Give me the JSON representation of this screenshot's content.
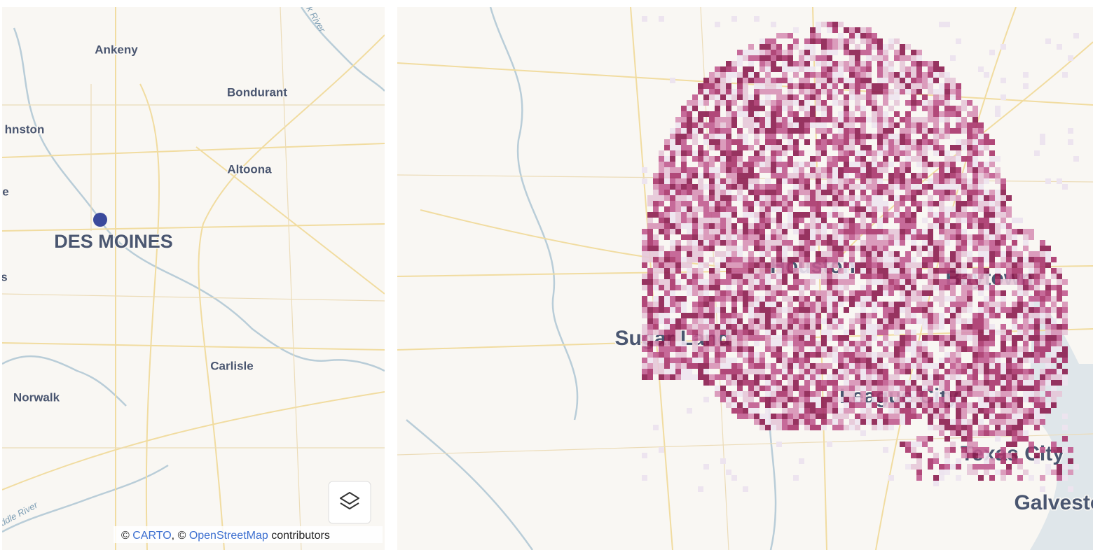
{
  "left_map": {
    "places": [
      "Ankeny",
      "Bondurant",
      "hnston",
      "Altoona",
      "e",
      "DES MOINES",
      "s",
      "Carlisle",
      "Norwalk"
    ],
    "rivers": [
      "k River",
      "ddle River"
    ],
    "attribution": {
      "prefix": "©",
      "carto": "CARTO",
      "separator": ", ©",
      "osm": "OpenStreetMap",
      "suffix": "contributors"
    }
  },
  "right_map": {
    "places": [
      "Houston",
      "Baytown",
      "Sugar Land",
      "League City",
      "Texas City",
      "Galveston"
    ]
  }
}
